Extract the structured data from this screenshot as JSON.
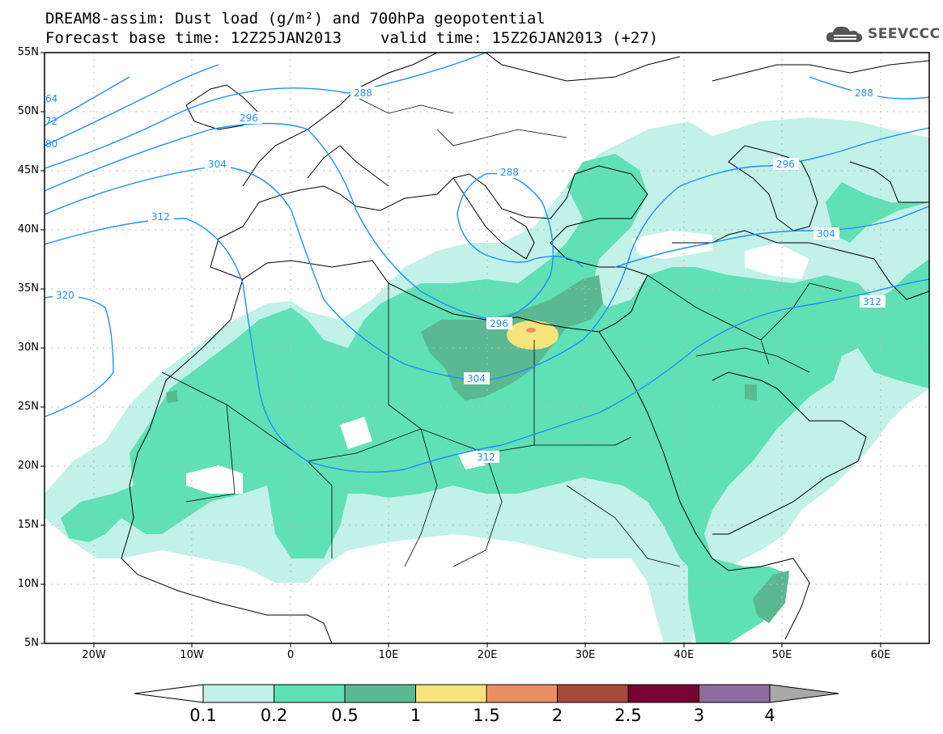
{
  "header": {
    "title": "DREAM8-assim: Dust load (g/m²) and 700hPa geopotential",
    "base_time_label": "Forecast base time: 12Z25JAN2013",
    "valid_time_label": "valid time: 15Z26JAN2013 (+27)"
  },
  "logo": {
    "text": "SEEVCCC",
    "icon": "cloud-logo-icon"
  },
  "map": {
    "lat_labels": [
      "55N",
      "50N",
      "45N",
      "40N",
      "35N",
      "30N",
      "25N",
      "20N",
      "15N",
      "10N",
      "5N"
    ],
    "lon_labels": [
      "20W",
      "10W",
      "0",
      "10E",
      "20E",
      "30E",
      "40E",
      "50E",
      "60E"
    ],
    "contour_labels": [
      "288",
      "296",
      "304",
      "312",
      "320",
      "64",
      "72",
      "80",
      "288",
      "296",
      "304",
      "312",
      "288",
      "296",
      "304",
      "312"
    ]
  },
  "colorbar": {
    "labels": [
      "0.1",
      "0.2",
      "0.5",
      "1",
      "1.5",
      "2",
      "2.5",
      "3",
      "4"
    ],
    "colors": [
      "#ffffff",
      "#c2f1e7",
      "#5fe0b5",
      "#5ab992",
      "#f4e47b",
      "#e88f64",
      "#a84a3c",
      "#760431",
      "#8e6a9e",
      "#a9a9a9"
    ]
  }
}
